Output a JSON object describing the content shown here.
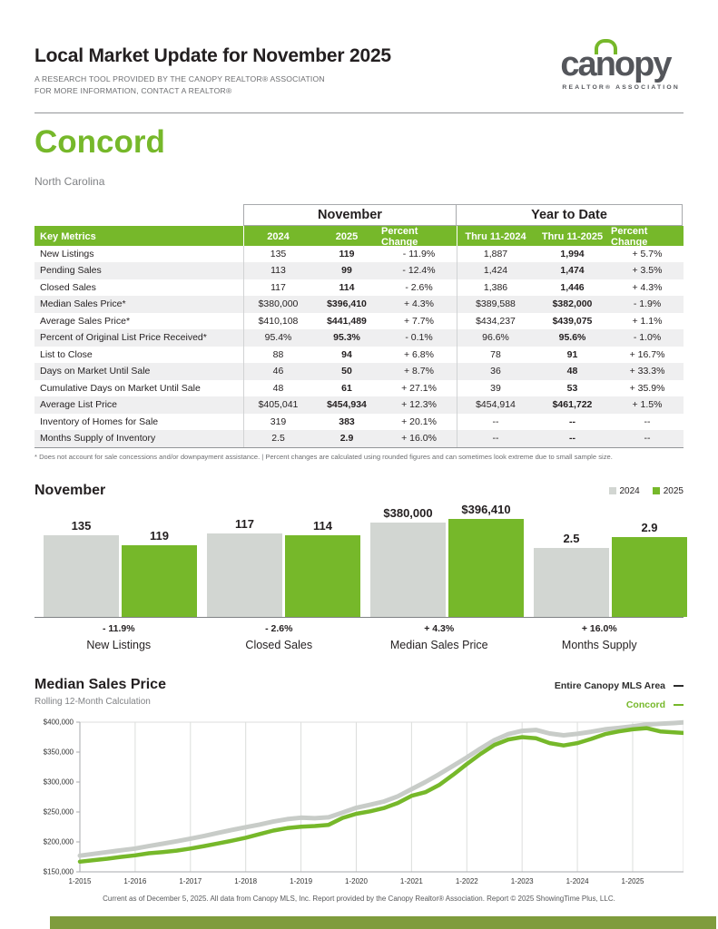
{
  "page": {
    "title": "Local Market Update for November 2025",
    "subtitle_line1": "A RESEARCH TOOL PROVIDED BY THE CANOPY REALTOR® ASSOCIATION",
    "subtitle_line2": "FOR MORE INFORMATION, CONTACT A REALTOR®",
    "area_name": "Concord",
    "area_state": "North Carolina",
    "footer": "Current as of December 5, 2025. All data from Canopy MLS, Inc. Report provided by the Canopy Realtor® Association. Report © 2025 ShowingTime Plus, LLC."
  },
  "logo": {
    "word_left": "ca",
    "word_mid": "n",
    "word_right": "opy",
    "tagline": "REALTOR® ASSOCIATION",
    "brand_green": "#76B82A",
    "brand_gray": "#54565B"
  },
  "table": {
    "group_headers": [
      "November",
      "Year to Date"
    ],
    "columns": [
      "Key Metrics",
      "2024",
      "2025",
      "Percent Change",
      "Thru 11-2024",
      "Thru 11-2025",
      "Percent Change"
    ],
    "rows": [
      [
        "New Listings",
        "135",
        "119",
        "- 11.9%",
        "1,887",
        "1,994",
        "+ 5.7%"
      ],
      [
        "Pending Sales",
        "113",
        "99",
        "- 12.4%",
        "1,424",
        "1,474",
        "+ 3.5%"
      ],
      [
        "Closed Sales",
        "117",
        "114",
        "- 2.6%",
        "1,386",
        "1,446",
        "+ 4.3%"
      ],
      [
        "Median Sales Price*",
        "$380,000",
        "$396,410",
        "+ 4.3%",
        "$389,588",
        "$382,000",
        "- 1.9%"
      ],
      [
        "Average Sales Price*",
        "$410,108",
        "$441,489",
        "+ 7.7%",
        "$434,237",
        "$439,075",
        "+ 1.1%"
      ],
      [
        "Percent of Original List Price Received*",
        "95.4%",
        "95.3%",
        "- 0.1%",
        "96.6%",
        "95.6%",
        "- 1.0%"
      ],
      [
        "List to Close",
        "88",
        "94",
        "+ 6.8%",
        "78",
        "91",
        "+ 16.7%"
      ],
      [
        "Days on Market Until Sale",
        "46",
        "50",
        "+ 8.7%",
        "36",
        "48",
        "+ 33.3%"
      ],
      [
        "Cumulative Days on Market Until Sale",
        "48",
        "61",
        "+ 27.1%",
        "39",
        "53",
        "+ 35.9%"
      ],
      [
        "Average List Price",
        "$405,041",
        "$454,934",
        "+ 12.3%",
        "$454,914",
        "$461,722",
        "+ 1.5%"
      ],
      [
        "Inventory of Homes for Sale",
        "319",
        "383",
        "+ 20.1%",
        "--",
        "--",
        "--"
      ],
      [
        "Months Supply of Inventory",
        "2.5",
        "2.9",
        "+ 16.0%",
        "--",
        "--",
        "--"
      ]
    ],
    "footnote": "* Does not account for sale concessions and/or downpayment assistance.  |  Percent changes are calculated using rounded figures and can sometimes look extreme due to small sample size."
  },
  "bar_section": {
    "title": "November",
    "legend": [
      {
        "label": "2024",
        "color": "#D2D6D2"
      },
      {
        "label": "2025",
        "color": "#76B82A"
      }
    ],
    "groups": [
      {
        "label": "New Listings",
        "change": "- 11.9%",
        "display": [
          "135",
          "119"
        ],
        "values": [
          135,
          119
        ]
      },
      {
        "label": "Closed Sales",
        "change": "- 2.6%",
        "display": [
          "117",
          "114"
        ],
        "values": [
          117,
          114
        ]
      },
      {
        "label": "Median Sales Price",
        "change": "+ 4.3%",
        "display": [
          "$380,000",
          "$396,410"
        ],
        "values": [
          380000,
          396410
        ]
      },
      {
        "label": "Months Supply",
        "change": "+ 16.0%",
        "display": [
          "2.5",
          "2.9"
        ],
        "values": [
          2.5,
          2.9
        ]
      }
    ]
  },
  "line_chart": {
    "title": "Median Sales Price",
    "subtitle": "Rolling 12-Month Calculation",
    "legend": [
      {
        "label": "Entire Canopy MLS Area",
        "color": "#2D2D2D"
      },
      {
        "label": "Concord",
        "color": "#76B82A"
      }
    ]
  },
  "chart_data": [
    {
      "type": "bar",
      "title": "November",
      "categories": [
        "New Listings",
        "Closed Sales",
        "Median Sales Price",
        "Months Supply"
      ],
      "series": [
        {
          "name": "2024",
          "values": [
            135,
            117,
            380000,
            2.5
          ]
        },
        {
          "name": "2025",
          "values": [
            119,
            114,
            396410,
            2.9
          ]
        }
      ],
      "changes": [
        "- 11.9%",
        "- 2.6%",
        "+ 4.3%",
        "+ 16.0%"
      ],
      "legend_position": "top-right"
    },
    {
      "type": "line",
      "title": "Median Sales Price",
      "subtitle": "Rolling 12-Month Calculation",
      "ylim": [
        150000,
        400000
      ],
      "xlim": [
        2015,
        2025.92
      ],
      "grid": "vertical-years",
      "y_ticks": [
        "$400,000",
        "$350,000",
        "$300,000",
        "$250,000",
        "$200,000",
        "$150,000"
      ],
      "y_tick_values": [
        400000,
        350000,
        300000,
        250000,
        200000,
        150000
      ],
      "x_ticks": [
        "1-2015",
        "1-2016",
        "1-2017",
        "1-2018",
        "1-2019",
        "1-2020",
        "1-2021",
        "1-2022",
        "1-2023",
        "1-2024",
        "1-2025"
      ],
      "x_tick_values": [
        2015,
        2016,
        2017,
        2018,
        2019,
        2020,
        2021,
        2022,
        2023,
        2024,
        2025
      ],
      "x": [
        2015.0,
        2015.25,
        2015.5,
        2015.75,
        2016.0,
        2016.25,
        2016.5,
        2016.75,
        2017.0,
        2017.25,
        2017.5,
        2017.75,
        2018.0,
        2018.25,
        2018.5,
        2018.75,
        2019.0,
        2019.25,
        2019.5,
        2019.75,
        2020.0,
        2020.25,
        2020.5,
        2020.75,
        2021.0,
        2021.25,
        2021.5,
        2021.75,
        2022.0,
        2022.25,
        2022.5,
        2022.75,
        2023.0,
        2023.25,
        2023.5,
        2023.75,
        2024.0,
        2024.25,
        2024.5,
        2024.75,
        2025.0,
        2025.25,
        2025.5,
        2025.75,
        2025.92
      ],
      "series": [
        {
          "name": "Entire Canopy MLS Area",
          "color": "#C8CCC8",
          "y": [
            177000,
            180000,
            183000,
            186000,
            189000,
            193000,
            197000,
            201000,
            205500,
            210000,
            215000,
            220000,
            224500,
            229000,
            234000,
            238000,
            240500,
            239500,
            241000,
            249000,
            257000,
            262000,
            267500,
            276000,
            288000,
            300000,
            313000,
            327000,
            341000,
            356000,
            370000,
            380000,
            385500,
            387000,
            381000,
            378000,
            380500,
            384000,
            388000,
            390500,
            393000,
            396000,
            397500,
            398500,
            399500
          ]
        },
        {
          "name": "Concord",
          "color": "#76B82A",
          "y": [
            167000,
            169500,
            172000,
            175000,
            177500,
            181000,
            183000,
            185500,
            189000,
            193000,
            197500,
            202000,
            207000,
            213000,
            219000,
            223000,
            225500,
            226500,
            228500,
            240000,
            247000,
            251000,
            256500,
            265000,
            277000,
            283000,
            295000,
            312000,
            330000,
            347000,
            362000,
            371000,
            375000,
            373000,
            365000,
            361000,
            365000,
            372000,
            380000,
            384500,
            388000,
            390000,
            384500,
            383000,
            382000
          ]
        }
      ]
    }
  ]
}
